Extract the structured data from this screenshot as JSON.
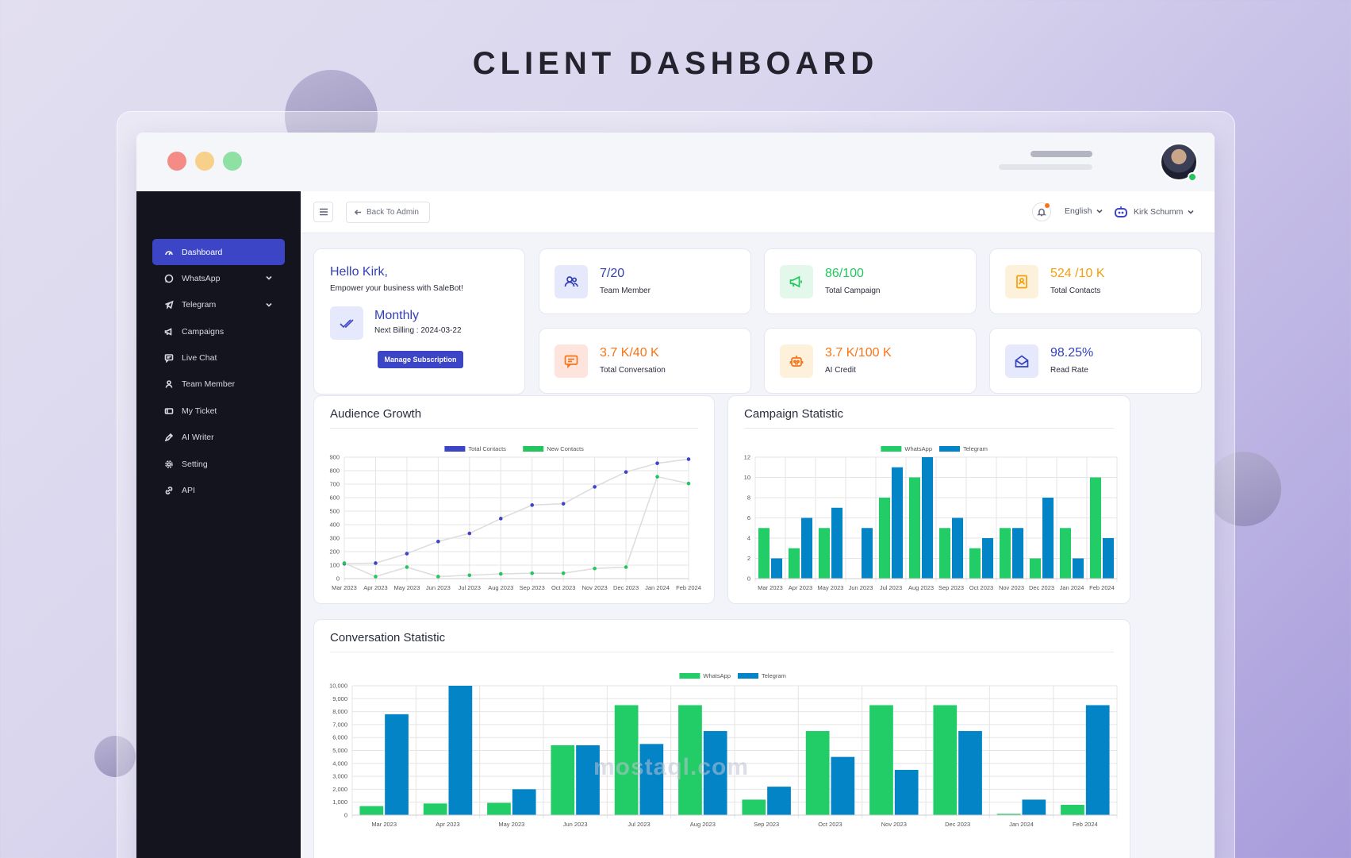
{
  "page": {
    "title": "CLIENT DASHBOARD"
  },
  "watermark": "mostaql.com",
  "sidebar": {
    "items": [
      {
        "label": "Dashboard",
        "icon": "gauge-icon",
        "active": true,
        "expandable": false
      },
      {
        "label": "WhatsApp",
        "icon": "whatsapp-icon",
        "active": false,
        "expandable": true
      },
      {
        "label": "Telegram",
        "icon": "telegram-icon",
        "active": false,
        "expandable": true
      },
      {
        "label": "Campaigns",
        "icon": "megaphone-icon",
        "active": false,
        "expandable": false
      },
      {
        "label": "Live Chat",
        "icon": "chat-icon",
        "active": false,
        "expandable": false
      },
      {
        "label": "Team Member",
        "icon": "user-icon",
        "active": false,
        "expandable": false
      },
      {
        "label": "My Ticket",
        "icon": "ticket-icon",
        "active": false,
        "expandable": false
      },
      {
        "label": "AI Writer",
        "icon": "pen-icon",
        "active": false,
        "expandable": false
      },
      {
        "label": "Setting",
        "icon": "gear-icon",
        "active": false,
        "expandable": false
      },
      {
        "label": "API",
        "icon": "link-icon",
        "active": false,
        "expandable": false
      }
    ]
  },
  "topbar": {
    "back_label": "Back To Admin",
    "language": "English",
    "user_name": "Kirk Schumm"
  },
  "welcome": {
    "greeting": "Hello Kirk,",
    "subtitle": "Empower your business with SaleBot!",
    "plan": "Monthly",
    "next_billing": "Next Billing : 2024-03-22",
    "manage_label": "Manage Subscription"
  },
  "stats": [
    {
      "value": "7/20",
      "label": "Team Member",
      "color": "#3340b8",
      "bg": "#e6e9fb",
      "icon": "users-icon"
    },
    {
      "value": "86/100",
      "label": "Total Campaign",
      "color": "#22c55e",
      "bg": "#e3f7ea",
      "icon": "megaphone-icon"
    },
    {
      "value": "524 /10 K",
      "label": "Total Contacts",
      "color": "#f59e0b",
      "bg": "#fdf1dc",
      "icon": "contact-icon"
    },
    {
      "value": "3.7 K/40 K",
      "label": "Total Conversation",
      "color": "#f97316",
      "bg": "#fde4dc",
      "icon": "message-icon"
    },
    {
      "value": "3.7 K/100 K",
      "label": "AI Credit",
      "color": "#f97316",
      "bg": "#fdf1dc",
      "icon": "robot-icon"
    },
    {
      "value": "98.25%",
      "label": "Read Rate",
      "color": "#3340b8",
      "bg": "#e6e9fb",
      "icon": "envelope-open-icon"
    }
  ],
  "colors": {
    "blue": "#3b45c6",
    "green": "#22c55e",
    "telegram": "#0284c7",
    "whatsapp": "#22cc66"
  },
  "chart_data": [
    {
      "type": "line",
      "title": "Audience Growth",
      "categories": [
        "Mar 2023",
        "Apr 2023",
        "May 2023",
        "Jun 2023",
        "Jul 2023",
        "Aug 2023",
        "Sep 2023",
        "Oct 2023",
        "Nov 2023",
        "Dec 2023",
        "Jan 2024",
        "Feb 2024"
      ],
      "series": [
        {
          "name": "Total Contacts",
          "values": [
            110,
            115,
            185,
            275,
            335,
            445,
            545,
            555,
            680,
            790,
            855,
            885
          ]
        },
        {
          "name": "New Contacts",
          "values": [
            115,
            15,
            85,
            15,
            25,
            35,
            40,
            40,
            75,
            85,
            755,
            705
          ]
        }
      ],
      "ylim": [
        0,
        900
      ],
      "yticks": [
        0,
        100,
        200,
        300,
        400,
        500,
        600,
        700,
        800,
        900
      ]
    },
    {
      "type": "bar",
      "title": "Campaign Statistic",
      "categories": [
        "Mar 2023",
        "Apr 2023",
        "May 2023",
        "Jun 2023",
        "Jul 2023",
        "Aug 2023",
        "Sep 2023",
        "Oct 2023",
        "Nov 2023",
        "Dec 2023",
        "Jan 2024",
        "Feb 2024"
      ],
      "series": [
        {
          "name": "WhatsApp",
          "values": [
            5,
            3,
            5,
            0,
            8,
            10,
            5,
            3,
            5,
            2,
            5,
            10
          ]
        },
        {
          "name": "Telegram",
          "values": [
            2,
            6,
            7,
            5,
            11,
            12,
            6,
            4,
            5,
            8,
            2,
            4
          ]
        }
      ],
      "ylim": [
        0,
        12
      ],
      "yticks": [
        0,
        2,
        4,
        6,
        8,
        10,
        12
      ]
    },
    {
      "type": "bar",
      "title": "Conversation Statistic",
      "categories": [
        "Mar 2023",
        "Apr 2023",
        "May 2023",
        "Jun 2023",
        "Jul 2023",
        "Aug 2023",
        "Sep 2023",
        "Oct 2023",
        "Nov 2023",
        "Dec 2023",
        "Jan 2024",
        "Feb 2024"
      ],
      "series": [
        {
          "name": "WhatsApp",
          "values": [
            700,
            900,
            950,
            5400,
            8500,
            8500,
            1200,
            6500,
            8500,
            8500,
            100,
            800
          ]
        },
        {
          "name": "Telegram",
          "values": [
            7800,
            10000,
            2000,
            5400,
            5500,
            6500,
            2200,
            4500,
            3500,
            6500,
            1200,
            8500
          ]
        }
      ],
      "ylim": [
        0,
        10000
      ],
      "yticks": [
        "0",
        "1,000",
        "2,000",
        "3,000",
        "4,000",
        "5,000",
        "6,000",
        "7,000",
        "8,000",
        "9,000",
        "10,000"
      ]
    }
  ]
}
